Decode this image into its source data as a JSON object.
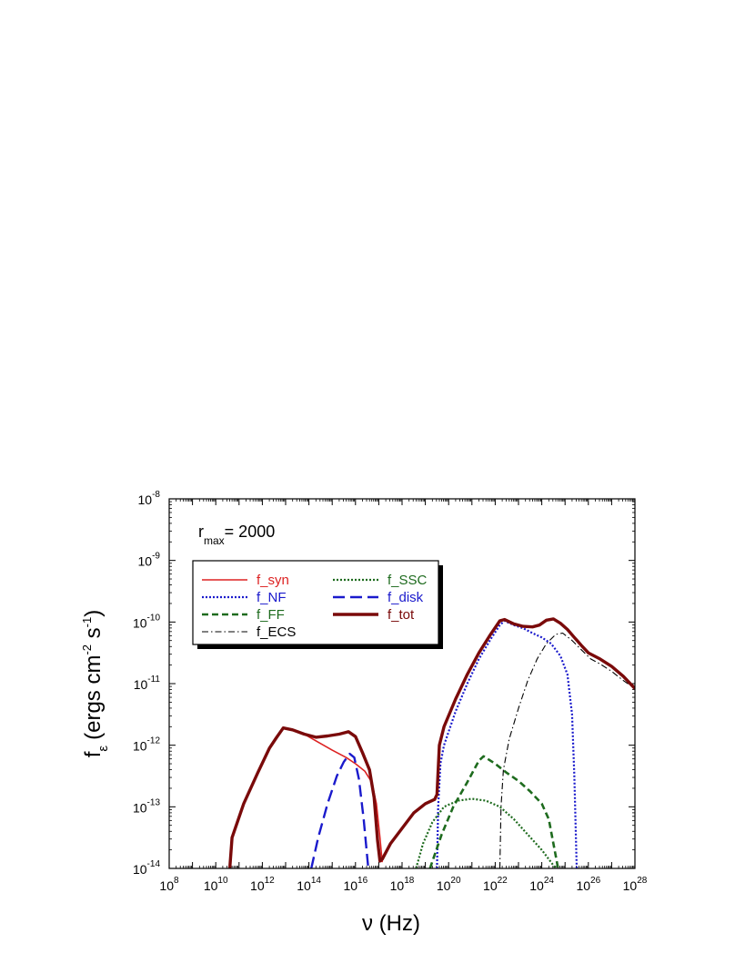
{
  "chart_data": {
    "type": "line",
    "annotation": {
      "main": "r",
      "sub": "max",
      "value": "= 2000"
    },
    "xlabel": "ν (Hz)",
    "ylabel": {
      "base": "f",
      "sub": "ε",
      "text1": "(ergs cm",
      "sup1": "-2",
      "text2": " s",
      "sup2": "-1",
      "text3": ")"
    },
    "x_scale": "log",
    "y_scale": "log",
    "x_log_range": [
      8,
      28
    ],
    "y_log_range": [
      -14,
      -8
    ],
    "x_ticks": [
      {
        "base": "10",
        "exp": "8"
      },
      {
        "base": "10",
        "exp": "10"
      },
      {
        "base": "10",
        "exp": "12"
      },
      {
        "base": "10",
        "exp": "14"
      },
      {
        "base": "10",
        "exp": "16"
      },
      {
        "base": "10",
        "exp": "18"
      },
      {
        "base": "10",
        "exp": "20"
      },
      {
        "base": "10",
        "exp": "22"
      },
      {
        "base": "10",
        "exp": "24"
      },
      {
        "base": "10",
        "exp": "26"
      },
      {
        "base": "10",
        "exp": "28"
      }
    ],
    "y_ticks": [
      {
        "base": "10",
        "exp": "-14"
      },
      {
        "base": "10",
        "exp": "-13"
      },
      {
        "base": "10",
        "exp": "-12"
      },
      {
        "base": "10",
        "exp": "-11"
      },
      {
        "base": "10",
        "exp": "-10"
      },
      {
        "base": "10",
        "exp": "-9"
      },
      {
        "base": "10",
        "exp": "-8"
      }
    ],
    "legend_position": "top-left",
    "series": [
      {
        "name": "f_syn",
        "color": "#dd2222",
        "style": "solid",
        "log_points": [
          [
            10.6,
            -14
          ],
          [
            10.7,
            -13.5
          ],
          [
            11.2,
            -12.95
          ],
          [
            11.8,
            -12.45
          ],
          [
            12.3,
            -12.05
          ],
          [
            12.6,
            -11.88
          ],
          [
            12.9,
            -11.72
          ],
          [
            13.3,
            -11.75
          ],
          [
            13.8,
            -11.82
          ],
          [
            14.4,
            -11.95
          ],
          [
            15.0,
            -12.08
          ],
          [
            15.6,
            -12.2
          ],
          [
            16.0,
            -12.3
          ],
          [
            16.4,
            -12.42
          ],
          [
            16.7,
            -12.6
          ],
          [
            16.9,
            -12.95
          ],
          [
            17.05,
            -13.5
          ],
          [
            17.15,
            -13.9
          ]
        ]
      },
      {
        "name": "f_NF",
        "color": "#1a1acc",
        "style": "dotted",
        "log_points": [
          [
            19.5,
            -14
          ],
          [
            19.55,
            -13.0
          ],
          [
            19.65,
            -12.3
          ],
          [
            19.8,
            -12.0
          ],
          [
            20.3,
            -11.45
          ],
          [
            20.8,
            -11.0
          ],
          [
            21.3,
            -10.6
          ],
          [
            21.8,
            -10.28
          ],
          [
            22.2,
            -10.05
          ],
          [
            22.4,
            -9.98
          ],
          [
            22.8,
            -10.05
          ],
          [
            23.2,
            -10.1
          ],
          [
            23.6,
            -10.18
          ],
          [
            24.0,
            -10.25
          ],
          [
            24.4,
            -10.35
          ],
          [
            24.8,
            -10.55
          ],
          [
            25.1,
            -10.85
          ],
          [
            25.3,
            -11.5
          ],
          [
            25.4,
            -12.5
          ],
          [
            25.5,
            -14
          ]
        ]
      },
      {
        "name": "f_FF",
        "color": "#1e6b1e",
        "style": "dashed",
        "log_points": [
          [
            19.2,
            -14
          ],
          [
            19.7,
            -13.45
          ],
          [
            20.2,
            -13.0
          ],
          [
            20.8,
            -12.6
          ],
          [
            21.3,
            -12.25
          ],
          [
            21.5,
            -12.18
          ],
          [
            22.0,
            -12.3
          ],
          [
            22.5,
            -12.45
          ],
          [
            23.0,
            -12.58
          ],
          [
            23.5,
            -12.75
          ],
          [
            24.0,
            -12.95
          ],
          [
            24.3,
            -13.2
          ],
          [
            24.6,
            -13.8
          ],
          [
            24.7,
            -14
          ]
        ]
      },
      {
        "name": "f_ECS",
        "color": "#000000",
        "style": "dashdot",
        "log_points": [
          [
            22.2,
            -14
          ],
          [
            22.25,
            -13.0
          ],
          [
            22.35,
            -12.4
          ],
          [
            22.6,
            -11.9
          ],
          [
            23.0,
            -11.4
          ],
          [
            23.4,
            -10.95
          ],
          [
            23.8,
            -10.6
          ],
          [
            24.2,
            -10.35
          ],
          [
            24.6,
            -10.2
          ],
          [
            24.9,
            -10.18
          ],
          [
            25.3,
            -10.3
          ],
          [
            25.7,
            -10.45
          ],
          [
            26.1,
            -10.6
          ],
          [
            26.5,
            -10.68
          ],
          [
            27.0,
            -10.8
          ],
          [
            27.5,
            -10.95
          ],
          [
            28.0,
            -11.08
          ]
        ]
      },
      {
        "name": "f_SSC",
        "color": "#1e6b1e",
        "style": "dotted",
        "log_points": [
          [
            18.6,
            -14
          ],
          [
            18.9,
            -13.6
          ],
          [
            19.3,
            -13.25
          ],
          [
            19.8,
            -13.0
          ],
          [
            20.4,
            -12.9
          ],
          [
            21.0,
            -12.87
          ],
          [
            21.6,
            -12.9
          ],
          [
            22.2,
            -13.0
          ],
          [
            22.8,
            -13.2
          ],
          [
            23.4,
            -13.45
          ],
          [
            24.0,
            -13.7
          ],
          [
            24.4,
            -13.9
          ],
          [
            24.6,
            -14
          ]
        ]
      },
      {
        "name": "f_disk",
        "color": "#1a1acc",
        "style": "longdash",
        "log_points": [
          [
            14.1,
            -14
          ],
          [
            14.4,
            -13.5
          ],
          [
            14.8,
            -12.95
          ],
          [
            15.2,
            -12.5
          ],
          [
            15.5,
            -12.27
          ],
          [
            15.75,
            -12.14
          ],
          [
            15.95,
            -12.2
          ],
          [
            16.15,
            -12.55
          ],
          [
            16.35,
            -13.2
          ],
          [
            16.5,
            -13.8
          ],
          [
            16.55,
            -14
          ]
        ]
      },
      {
        "name": "f_tot",
        "color": "#7a0a0a",
        "style": "thick",
        "log_points": [
          [
            10.6,
            -14
          ],
          [
            10.7,
            -13.5
          ],
          [
            11.2,
            -12.95
          ],
          [
            11.8,
            -12.45
          ],
          [
            12.3,
            -12.05
          ],
          [
            12.6,
            -11.88
          ],
          [
            12.9,
            -11.72
          ],
          [
            13.3,
            -11.75
          ],
          [
            13.8,
            -11.82
          ],
          [
            14.3,
            -11.87
          ],
          [
            14.8,
            -11.85
          ],
          [
            15.3,
            -11.82
          ],
          [
            15.7,
            -11.78
          ],
          [
            16.0,
            -11.86
          ],
          [
            16.3,
            -12.12
          ],
          [
            16.6,
            -12.4
          ],
          [
            16.8,
            -12.85
          ],
          [
            16.95,
            -13.55
          ],
          [
            17.05,
            -13.88
          ],
          [
            17.15,
            -13.85
          ],
          [
            17.5,
            -13.6
          ],
          [
            18.0,
            -13.35
          ],
          [
            18.5,
            -13.1
          ],
          [
            19.0,
            -12.95
          ],
          [
            19.4,
            -12.88
          ],
          [
            19.5,
            -12.8
          ],
          [
            19.6,
            -12.0
          ],
          [
            19.8,
            -11.7
          ],
          [
            20.3,
            -11.25
          ],
          [
            20.8,
            -10.85
          ],
          [
            21.3,
            -10.5
          ],
          [
            21.8,
            -10.2
          ],
          [
            22.2,
            -9.98
          ],
          [
            22.4,
            -9.96
          ],
          [
            22.8,
            -10.03
          ],
          [
            23.2,
            -10.07
          ],
          [
            23.6,
            -10.08
          ],
          [
            23.9,
            -10.05
          ],
          [
            24.2,
            -9.97
          ],
          [
            24.5,
            -9.95
          ],
          [
            24.8,
            -10.02
          ],
          [
            25.1,
            -10.12
          ],
          [
            25.4,
            -10.25
          ],
          [
            25.7,
            -10.38
          ],
          [
            26.0,
            -10.5
          ],
          [
            26.5,
            -10.6
          ],
          [
            27.0,
            -10.72
          ],
          [
            27.5,
            -10.88
          ],
          [
            28.0,
            -11.08
          ]
        ]
      }
    ]
  }
}
